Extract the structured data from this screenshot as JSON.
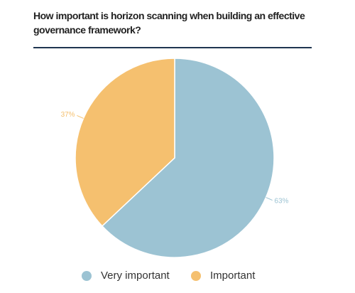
{
  "chart_data": {
    "type": "pie",
    "title": "How important is horizon scanning when building an effective governance framework?",
    "categories": [
      "Very important",
      "Important"
    ],
    "values": [
      63,
      37
    ],
    "value_labels": [
      "63%",
      "37%"
    ],
    "colors": [
      "#9cc3d3",
      "#f5c06f"
    ],
    "legend": "bottom"
  }
}
